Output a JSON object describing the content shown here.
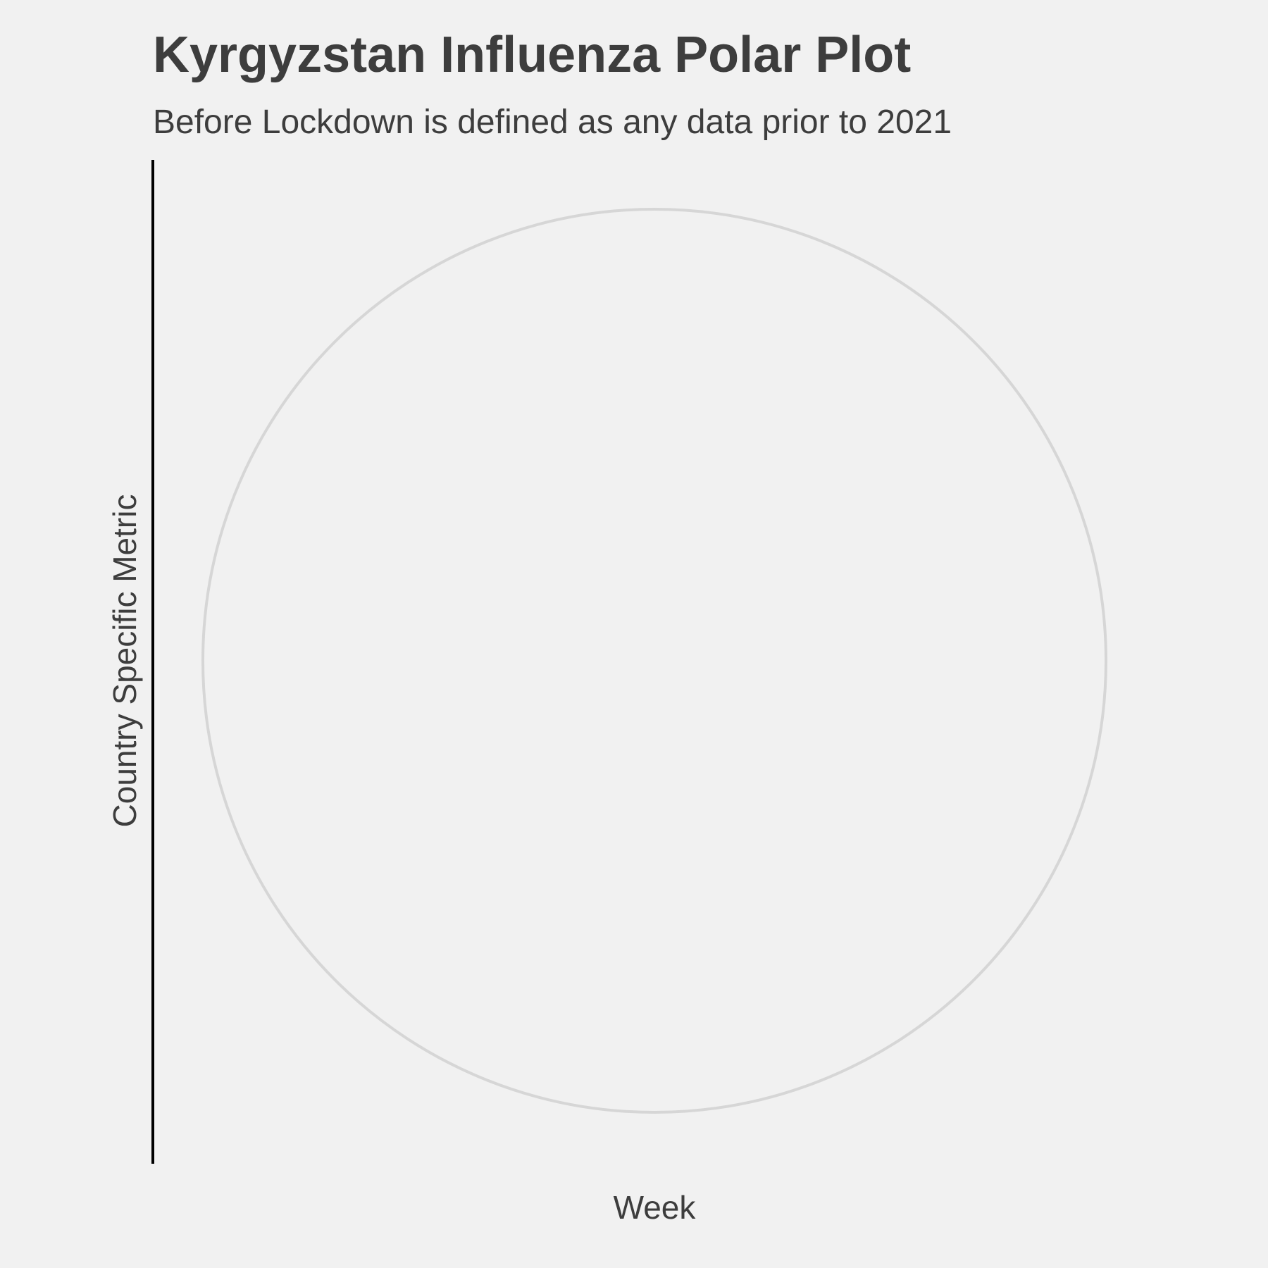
{
  "chart_data": {
    "type": "polar",
    "title": "Kyrgyzstan Influenza Polar Plot",
    "subtitle": "Before Lockdown is defined as any data prior to 2021",
    "xlabel": "Week",
    "ylabel": "Country Specific Metric",
    "series": [],
    "grid": true,
    "legend": "none"
  },
  "colors": {
    "background": "#f1f1f1",
    "text": "#3d3d3d",
    "grid": "#d6d6d6",
    "axis": "#000000"
  }
}
